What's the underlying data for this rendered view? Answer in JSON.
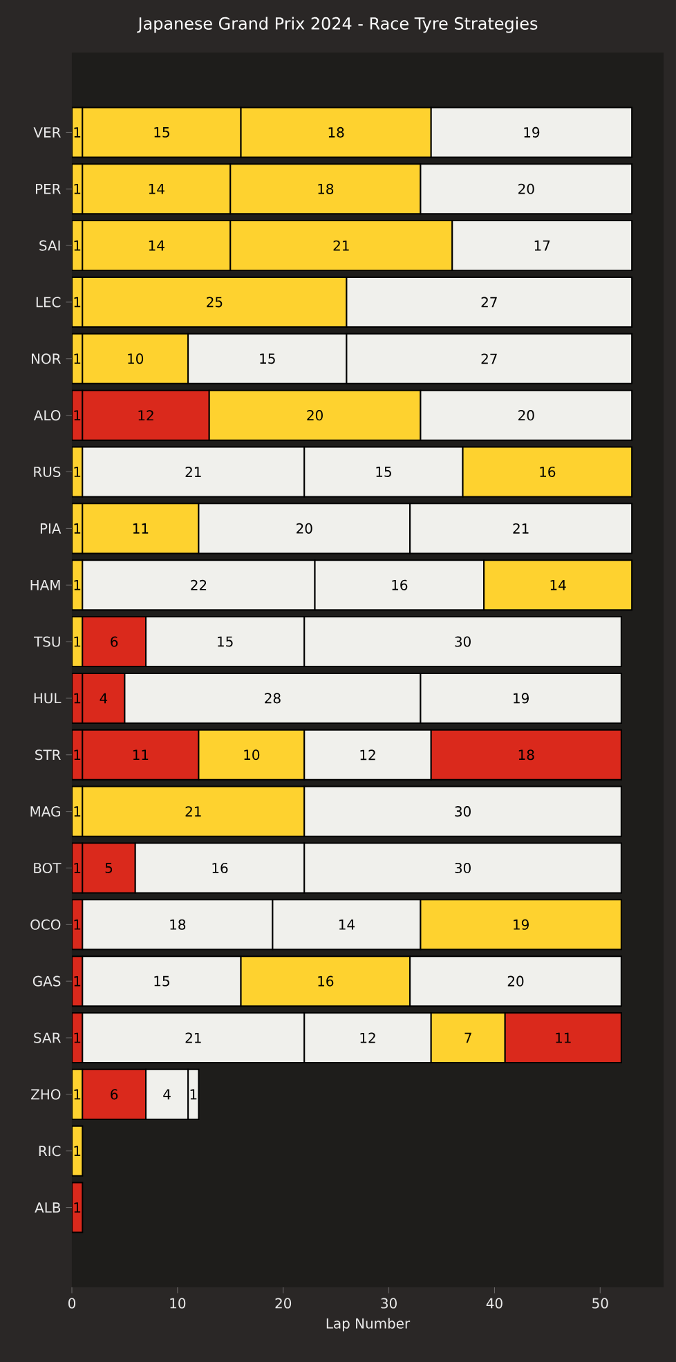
{
  "chart_data": {
    "type": "bar",
    "orientation": "horizontal",
    "stacked": true,
    "title": "Japanese Grand Prix 2024 - Race Tyre Strategies",
    "xlabel": "Lap Number",
    "categories": [
      "VER",
      "PER",
      "SAI",
      "LEC",
      "NOR",
      "ALO",
      "RUS",
      "PIA",
      "HAM",
      "TSU",
      "HUL",
      "STR",
      "MAG",
      "BOT",
      "OCO",
      "GAS",
      "SAR",
      "ZHO",
      "RIC",
      "ALB"
    ],
    "series": [
      {
        "values": [
          1,
          1,
          1,
          1,
          1,
          1,
          1,
          1,
          1,
          1,
          1,
          1,
          1,
          1,
          1,
          1,
          1,
          1,
          1,
          1
        ],
        "colors": [
          "#fed22f",
          "#fed22f",
          "#fed22f",
          "#fed22f",
          "#fed22f",
          "#da291c",
          "#fed22f",
          "#fed22f",
          "#fed22f",
          "#fed22f",
          "#da291c",
          "#da291c",
          "#fed22f",
          "#da291c",
          "#da291c",
          "#da291c",
          "#da291c",
          "#fed22f",
          "#fed22f",
          "#da291c"
        ]
      },
      {
        "values": [
          15,
          14,
          14,
          25,
          10,
          12,
          21,
          11,
          22,
          6,
          4,
          11,
          21,
          5,
          18,
          15,
          21,
          6,
          null,
          null
        ],
        "colors": [
          "#fed22f",
          "#fed22f",
          "#fed22f",
          "#fed22f",
          "#fed22f",
          "#da291c",
          "#f0f0ec",
          "#fed22f",
          "#f0f0ec",
          "#da291c",
          "#da291c",
          "#da291c",
          "#fed22f",
          "#da291c",
          "#f0f0ec",
          "#f0f0ec",
          "#f0f0ec",
          "#da291c",
          null,
          null
        ]
      },
      {
        "values": [
          18,
          18,
          21,
          27,
          15,
          20,
          15,
          20,
          16,
          15,
          28,
          10,
          30,
          16,
          14,
          16,
          12,
          4,
          null,
          null
        ],
        "colors": [
          "#fed22f",
          "#fed22f",
          "#fed22f",
          "#f0f0ec",
          "#f0f0ec",
          "#fed22f",
          "#f0f0ec",
          "#f0f0ec",
          "#f0f0ec",
          "#f0f0ec",
          "#f0f0ec",
          "#fed22f",
          "#f0f0ec",
          "#f0f0ec",
          "#f0f0ec",
          "#fed22f",
          "#f0f0ec",
          "#f0f0ec",
          null,
          null
        ]
      },
      {
        "values": [
          19,
          20,
          17,
          null,
          27,
          20,
          16,
          21,
          14,
          30,
          19,
          12,
          null,
          30,
          19,
          20,
          7,
          1,
          null,
          null
        ],
        "colors": [
          "#f0f0ec",
          "#f0f0ec",
          "#f0f0ec",
          null,
          "#f0f0ec",
          "#f0f0ec",
          "#fed22f",
          "#f0f0ec",
          "#fed22f",
          "#f0f0ec",
          "#f0f0ec",
          "#f0f0ec",
          null,
          "#f0f0ec",
          "#fed22f",
          "#f0f0ec",
          "#fed22f",
          "#f0f0ec",
          null,
          null
        ]
      },
      {
        "values": [
          null,
          null,
          null,
          null,
          null,
          null,
          null,
          null,
          null,
          null,
          null,
          18,
          null,
          null,
          null,
          null,
          11,
          null,
          null,
          null
        ],
        "colors": [
          null,
          null,
          null,
          null,
          null,
          null,
          null,
          null,
          null,
          null,
          null,
          "#da291c",
          null,
          null,
          null,
          null,
          "#da291c",
          null,
          null,
          null
        ]
      }
    ],
    "data_labels": true,
    "xlim": [
      0,
      56
    ],
    "xticks": [
      0,
      10,
      20,
      30,
      40,
      50
    ]
  }
}
